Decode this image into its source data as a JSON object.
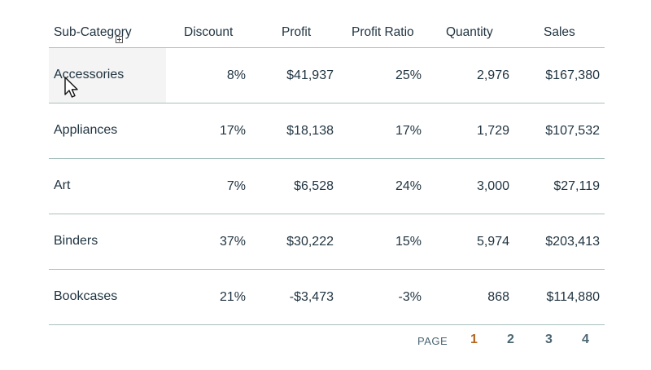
{
  "table": {
    "columns": {
      "sub_category": "Sub-Category",
      "discount": "Discount",
      "profit": "Profit",
      "profit_ratio": "Profit Ratio",
      "quantity": "Quantity",
      "sales": "Sales"
    },
    "rows": [
      {
        "sub_category": "Accessories",
        "discount": "8%",
        "profit": "$41,937",
        "profit_ratio": "25%",
        "quantity": "2,976",
        "sales": "$167,380"
      },
      {
        "sub_category": "Appliances",
        "discount": "17%",
        "profit": "$18,138",
        "profit_ratio": "17%",
        "quantity": "1,729",
        "sales": "$107,532"
      },
      {
        "sub_category": "Art",
        "discount": "7%",
        "profit": "$6,528",
        "profit_ratio": "24%",
        "quantity": "3,000",
        "sales": "$27,119"
      },
      {
        "sub_category": "Binders",
        "discount": "37%",
        "profit": "$30,222",
        "profit_ratio": "15%",
        "quantity": "5,974",
        "sales": "$203,413"
      },
      {
        "sub_category": "Bookcases",
        "discount": "21%",
        "profit": "-$3,473",
        "profit_ratio": "-3%",
        "quantity": "868",
        "sales": "$114,880"
      }
    ]
  },
  "pagination": {
    "label": "PAGE",
    "pages": [
      "1",
      "2",
      "3",
      "4"
    ],
    "current": "1"
  },
  "icons": {
    "expand": "expand-plus-icon",
    "cursor": "mouse-pointer-icon"
  },
  "colors": {
    "text": "#1f3340",
    "divider": "#a9c1bd",
    "active_page": "#b5651d",
    "pager_text": "#4a6572",
    "hover_bg": "#f3f4f3"
  }
}
